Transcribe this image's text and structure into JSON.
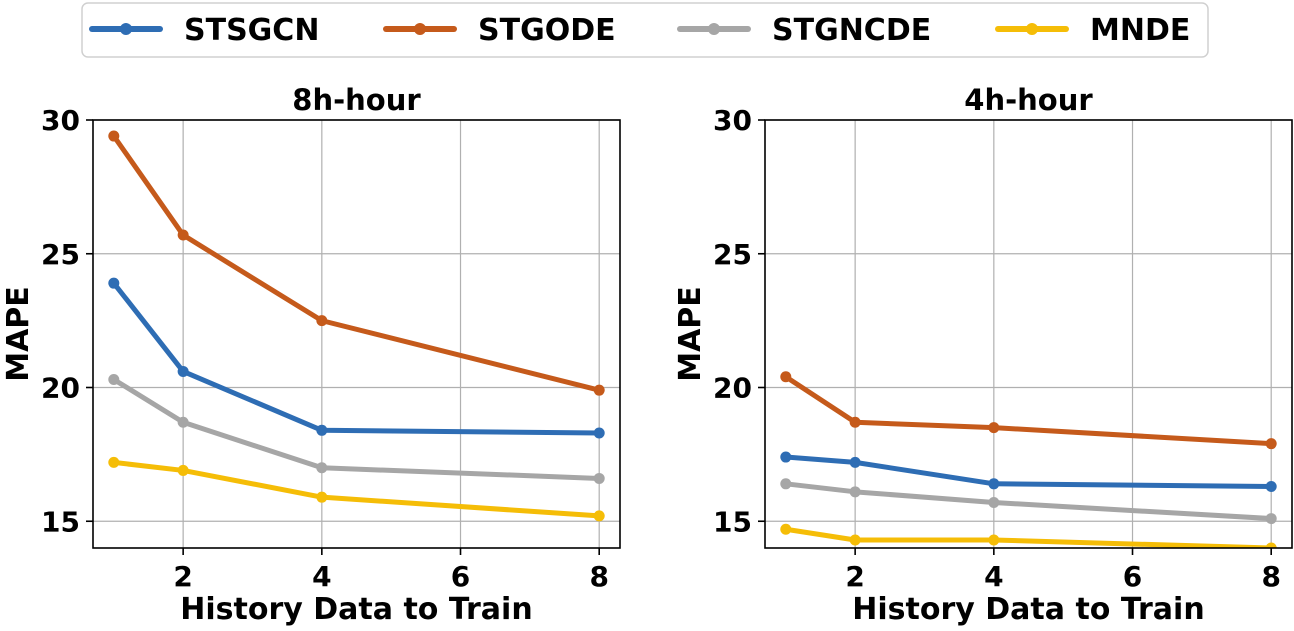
{
  "chart_data": {
    "type": "line",
    "legend": {
      "placement": "top-center",
      "entries": [
        {
          "name": "STSGCN",
          "color": "#2e6db4"
        },
        {
          "name": "STGODE",
          "color": "#c55a1b"
        },
        {
          "name": "STGNCDE",
          "color": "#a6a6a6"
        },
        {
          "name": "MNDE",
          "color": "#f5bd07"
        }
      ]
    },
    "panels": [
      {
        "title": "8h-hour",
        "xlabel": "History Data to Train",
        "ylabel": "MAPE",
        "xlim": [
          0.7,
          8.3
        ],
        "ylim": [
          14,
          30
        ],
        "xticks": [
          2,
          4,
          6,
          8
        ],
        "yticks": [
          15,
          20,
          25,
          30
        ],
        "grid": true,
        "x": [
          1,
          2,
          4,
          8
        ],
        "series": [
          {
            "name": "STSGCN",
            "values": [
              23.9,
              20.6,
              18.4,
              18.3
            ]
          },
          {
            "name": "STGODE",
            "values": [
              29.4,
              25.7,
              22.5,
              19.9
            ]
          },
          {
            "name": "STGNCDE",
            "values": [
              20.3,
              18.7,
              17.0,
              16.6
            ]
          },
          {
            "name": "MNDE",
            "values": [
              17.2,
              16.9,
              15.9,
              15.2
            ]
          }
        ]
      },
      {
        "title": "4h-hour",
        "xlabel": "History Data to Train",
        "ylabel": "MAPE",
        "xlim": [
          0.7,
          8.3
        ],
        "ylim": [
          14,
          30
        ],
        "xticks": [
          2,
          4,
          6,
          8
        ],
        "yticks": [
          15,
          20,
          25,
          30
        ],
        "grid": true,
        "x": [
          1,
          2,
          4,
          8
        ],
        "series": [
          {
            "name": "STSGCN",
            "values": [
              17.4,
              17.2,
              16.4,
              16.3
            ]
          },
          {
            "name": "STGODE",
            "values": [
              20.4,
              18.7,
              18.5,
              17.9
            ]
          },
          {
            "name": "STGNCDE",
            "values": [
              16.4,
              16.1,
              15.7,
              15.1
            ]
          },
          {
            "name": "MNDE",
            "values": [
              14.7,
              14.3,
              14.3,
              14.0
            ]
          }
        ]
      }
    ]
  }
}
